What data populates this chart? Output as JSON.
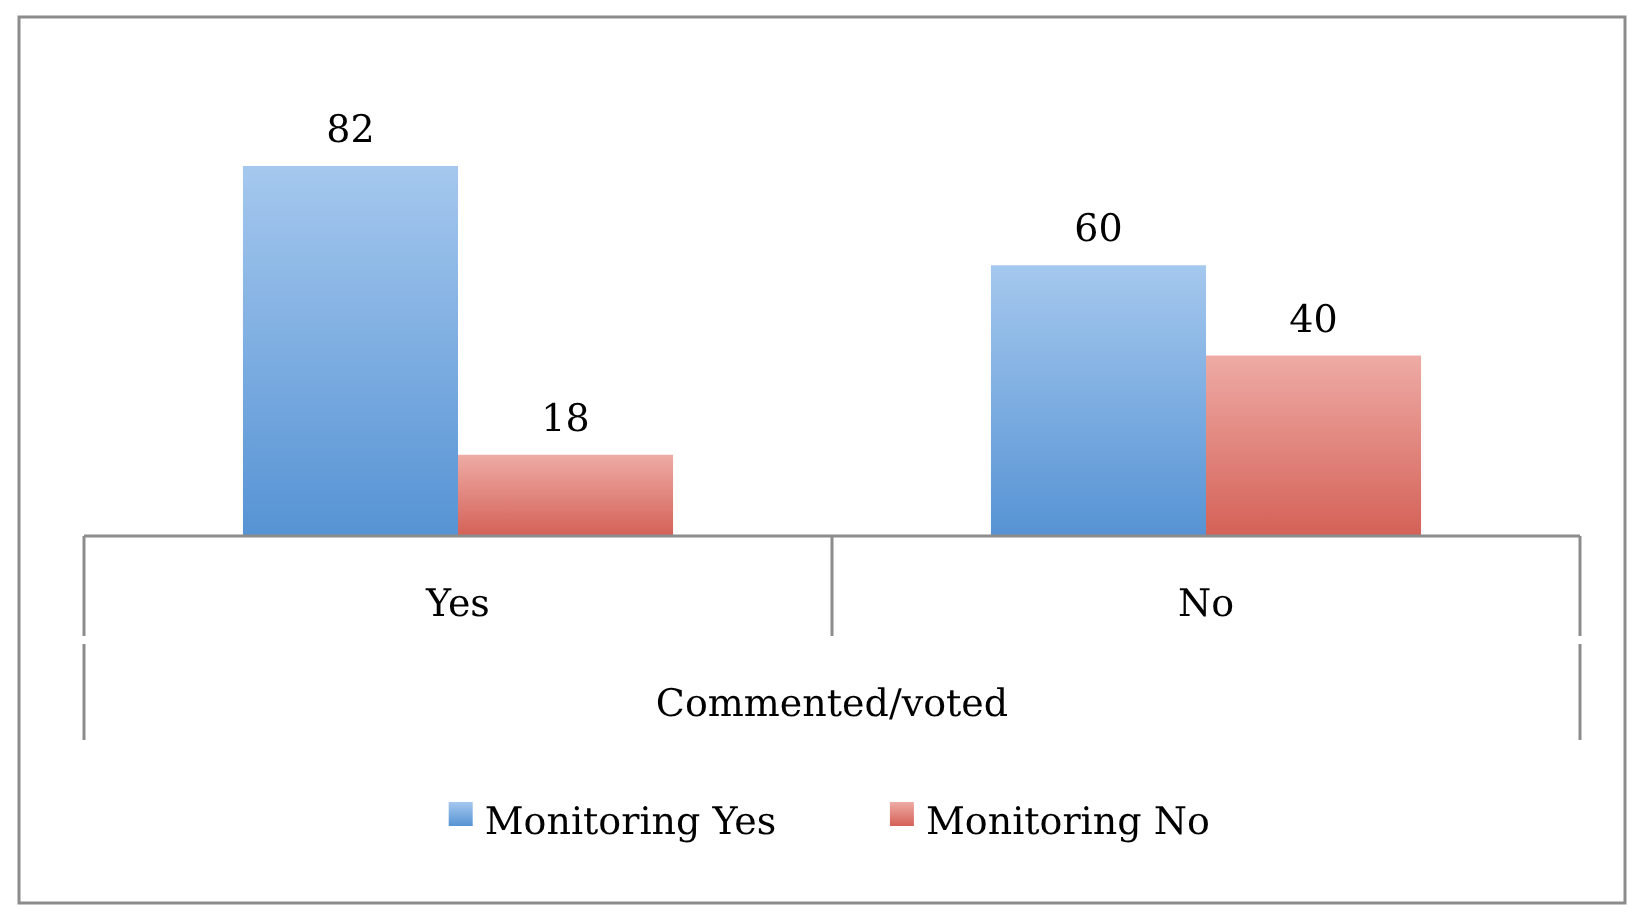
{
  "chart_data": {
    "type": "bar",
    "xlabel": "Commented/voted",
    "categories": [
      "Yes",
      "No"
    ],
    "series": [
      {
        "name": "Monitoring Yes",
        "color": "#5b9be0",
        "values": [
          82,
          60
        ]
      },
      {
        "name": "Monitoring No",
        "color": "#e0665c",
        "values": [
          18,
          40
        ]
      }
    ],
    "data_labels": true,
    "legend": "bottom"
  }
}
